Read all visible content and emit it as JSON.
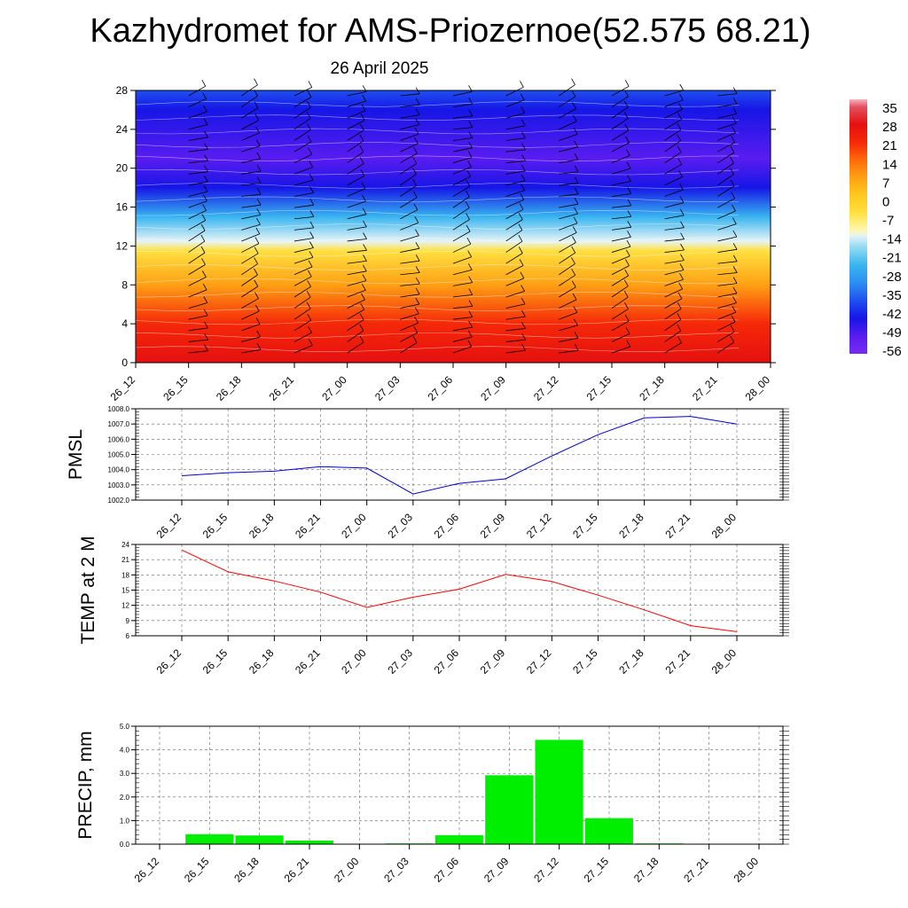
{
  "title": "Kazhydromet for AMS-Priozernoe(52.575 68.21)",
  "subtitle": "26 April 2025",
  "chart_data": [
    {
      "type": "heatmap",
      "panel": "upper-air temperature with wind barbs",
      "x_ticks": [
        "26_12",
        "26_15",
        "26_18",
        "26_21",
        "27_00",
        "27_03",
        "27_06",
        "27_09",
        "27_12",
        "27_15",
        "27_18",
        "27_21",
        "28_00"
      ],
      "y_ticks": [
        0,
        4,
        8,
        12,
        16,
        20,
        24,
        28
      ],
      "ylim": [
        0,
        28
      ],
      "colorbar": {
        "labels": [
          35,
          28,
          21,
          14,
          7,
          0,
          -7,
          -14,
          -21,
          -28,
          -35,
          -42,
          -49,
          -56
        ],
        "range": [
          -63,
          38
        ]
      },
      "profile": [
        {
          "y": 0,
          "value": 25
        },
        {
          "y": 4,
          "value": 15
        },
        {
          "y": 8,
          "value": 4
        },
        {
          "y": 11.5,
          "value": -9
        },
        {
          "y": 12.5,
          "value": -18
        },
        {
          "y": 15,
          "value": -32
        },
        {
          "y": 18,
          "value": -50
        },
        {
          "y": 21,
          "value": -58
        },
        {
          "y": 26,
          "value": -52
        },
        {
          "y": 28,
          "value": -48
        }
      ],
      "grid": false
    },
    {
      "type": "line",
      "ylabel": "PMSL",
      "x": [
        "26_12",
        "26_15",
        "26_18",
        "26_21",
        "27_00",
        "27_03",
        "27_06",
        "27_09",
        "27_12",
        "27_15",
        "27_18",
        "27_21",
        "28_00"
      ],
      "values": [
        1003.6,
        1003.8,
        1003.9,
        1004.2,
        1004.1,
        1002.4,
        1003.1,
        1003.4,
        1004.9,
        1006.3,
        1007.4,
        1007.5,
        1007.0
      ],
      "ylim": [
        1002.0,
        1008.0
      ],
      "y_ticks": [
        "1002.0",
        "1003.0",
        "1004.0",
        "1005.0",
        "1006.0",
        "1007.0",
        "1008.0"
      ],
      "color": "#0000cc",
      "grid": true
    },
    {
      "type": "line",
      "ylabel": "TEMP at 2 M",
      "x": [
        "26_12",
        "26_15",
        "26_18",
        "26_21",
        "27_00",
        "27_03",
        "27_06",
        "27_09",
        "27_12",
        "27_15",
        "27_18",
        "27_21",
        "28_00"
      ],
      "values": [
        22.9,
        18.6,
        16.8,
        14.6,
        11.6,
        13.6,
        15.2,
        18.1,
        16.7,
        14.0,
        11.1,
        8.0,
        6.8
      ],
      "ylim": [
        6,
        24
      ],
      "y_ticks": [
        6,
        9,
        12,
        15,
        18,
        21,
        24
      ],
      "color": "#ff0000",
      "grid": true
    },
    {
      "type": "bar",
      "ylabel": "PRECIP, mm",
      "categories": [
        "26_12",
        "26_15",
        "26_18",
        "26_21",
        "27_00",
        "27_03",
        "27_06",
        "27_09",
        "27_12",
        "27_15",
        "27_18",
        "27_21",
        "28_00"
      ],
      "values": [
        0.0,
        0.42,
        0.37,
        0.15,
        0.0,
        0.03,
        0.38,
        2.92,
        4.42,
        1.1,
        0.03,
        0.0,
        0.0
      ],
      "ylim": [
        0,
        5
      ],
      "y_ticks": [
        "0.0",
        "1.0",
        "2.0",
        "3.0",
        "4.0",
        "5.0"
      ],
      "color": "#00ee00",
      "grid": true
    }
  ]
}
